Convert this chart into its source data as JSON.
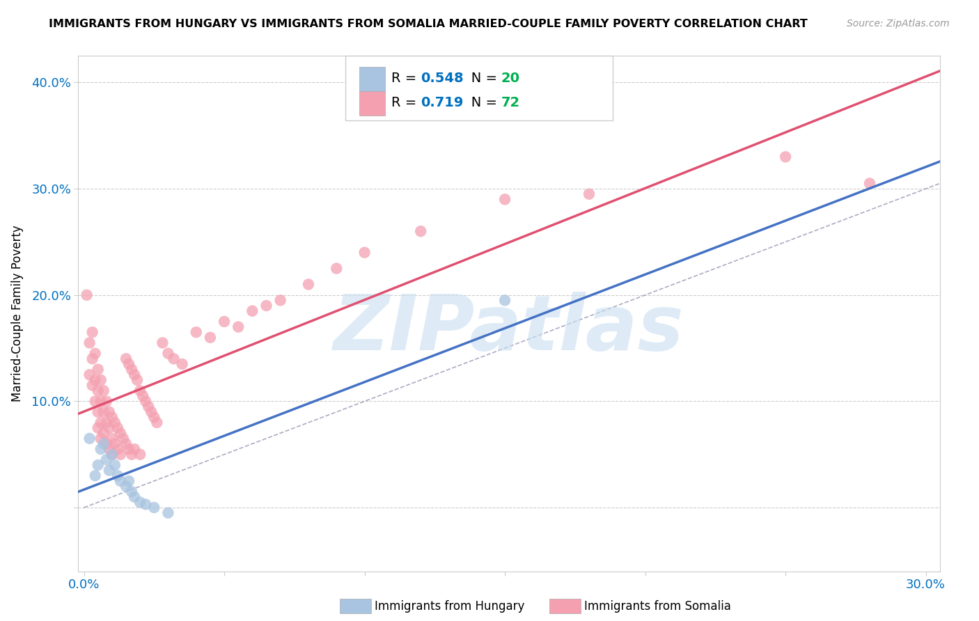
{
  "title": "IMMIGRANTS FROM HUNGARY VS IMMIGRANTS FROM SOMALIA MARRIED-COUPLE FAMILY POVERTY CORRELATION CHART",
  "source_text": "Source: ZipAtlas.com",
  "ylabel": "Married-Couple Family Poverty",
  "xlim": [
    -0.002,
    0.305
  ],
  "ylim": [
    -0.06,
    0.425
  ],
  "xticks": [
    0.0,
    0.05,
    0.1,
    0.15,
    0.2,
    0.25,
    0.3
  ],
  "xtick_labels": [
    "0.0%",
    "",
    "",
    "",
    "",
    "",
    "30.0%"
  ],
  "yticks": [
    0.0,
    0.1,
    0.2,
    0.3,
    0.4
  ],
  "ytick_labels": [
    "",
    "10.0%",
    "20.0%",
    "30.0%",
    "40.0%"
  ],
  "hungary_color": "#a8c4e0",
  "somalia_color": "#f4a0b0",
  "hungary_R": 0.548,
  "hungary_N": 20,
  "somalia_R": 0.719,
  "somalia_N": 72,
  "watermark": "ZIPatlas",
  "watermark_color": "#c8dff0",
  "R_color": "#0070c0",
  "N_color": "#00b050",
  "hungary_line_color": "#4472c4",
  "somalia_line_color": "#e05070",
  "ref_line_color": "#8888aa",
  "hungary_scatter_x": [
    0.002,
    0.004,
    0.005,
    0.006,
    0.007,
    0.008,
    0.009,
    0.01,
    0.011,
    0.012,
    0.013,
    0.015,
    0.016,
    0.017,
    0.018,
    0.02,
    0.022,
    0.025,
    0.03,
    0.15
  ],
  "hungary_scatter_y": [
    0.065,
    0.03,
    0.04,
    0.055,
    0.06,
    0.045,
    0.035,
    0.05,
    0.04,
    0.03,
    0.025,
    0.02,
    0.025,
    0.015,
    0.01,
    0.005,
    0.003,
    0.0,
    -0.005,
    0.195
  ],
  "somalia_scatter_x": [
    0.001,
    0.002,
    0.002,
    0.003,
    0.003,
    0.003,
    0.004,
    0.004,
    0.004,
    0.005,
    0.005,
    0.005,
    0.005,
    0.006,
    0.006,
    0.006,
    0.006,
    0.007,
    0.007,
    0.007,
    0.008,
    0.008,
    0.008,
    0.009,
    0.009,
    0.009,
    0.01,
    0.01,
    0.01,
    0.011,
    0.011,
    0.012,
    0.012,
    0.013,
    0.013,
    0.014,
    0.015,
    0.015,
    0.016,
    0.016,
    0.017,
    0.017,
    0.018,
    0.018,
    0.019,
    0.02,
    0.02,
    0.021,
    0.022,
    0.023,
    0.024,
    0.025,
    0.026,
    0.028,
    0.03,
    0.032,
    0.035,
    0.04,
    0.045,
    0.05,
    0.055,
    0.06,
    0.065,
    0.07,
    0.08,
    0.09,
    0.1,
    0.12,
    0.15,
    0.18,
    0.25,
    0.28
  ],
  "somalia_scatter_y": [
    0.2,
    0.155,
    0.125,
    0.165,
    0.14,
    0.115,
    0.145,
    0.12,
    0.1,
    0.13,
    0.11,
    0.09,
    0.075,
    0.12,
    0.1,
    0.08,
    0.065,
    0.11,
    0.09,
    0.07,
    0.1,
    0.08,
    0.06,
    0.09,
    0.075,
    0.055,
    0.085,
    0.065,
    0.05,
    0.08,
    0.06,
    0.075,
    0.055,
    0.07,
    0.05,
    0.065,
    0.14,
    0.06,
    0.135,
    0.055,
    0.13,
    0.05,
    0.125,
    0.055,
    0.12,
    0.11,
    0.05,
    0.105,
    0.1,
    0.095,
    0.09,
    0.085,
    0.08,
    0.155,
    0.145,
    0.14,
    0.135,
    0.165,
    0.16,
    0.175,
    0.17,
    0.185,
    0.19,
    0.195,
    0.21,
    0.225,
    0.24,
    0.26,
    0.29,
    0.295,
    0.33,
    0.305
  ],
  "figsize": [
    14.06,
    8.92
  ],
  "dpi": 100
}
